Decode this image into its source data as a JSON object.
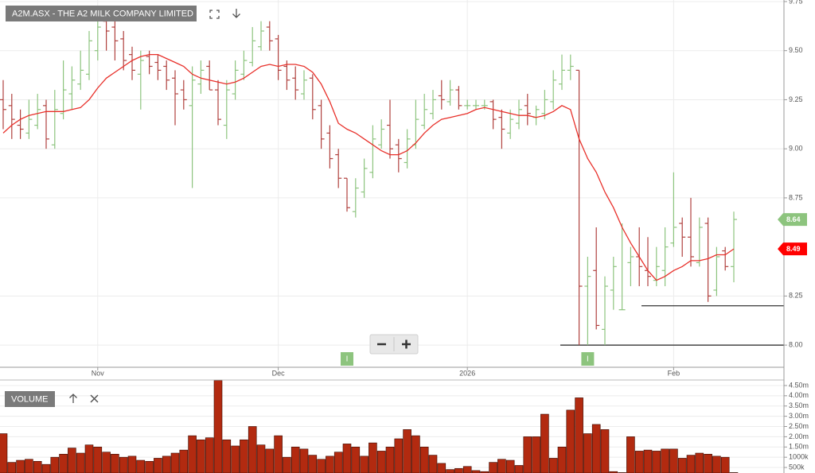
{
  "chart_data": [
    {
      "type": "ohlc",
      "title": "A2M.ASX - THE A2 MILK COMPANY LIMITED",
      "categories": [
        null,
        null,
        null,
        null,
        null,
        null,
        null,
        null,
        null,
        null,
        null,
        "Nov",
        null,
        null,
        null,
        null,
        null,
        null,
        null,
        null,
        null,
        null,
        null,
        null,
        null,
        null,
        null,
        null,
        null,
        null,
        null,
        null,
        "Dec",
        null,
        null,
        null,
        null,
        null,
        null,
        null,
        null,
        null,
        null,
        null,
        null,
        null,
        null,
        null,
        null,
        null,
        null,
        null,
        null,
        null,
        "2026",
        null,
        null,
        null,
        null,
        null,
        null,
        null,
        null,
        null,
        null,
        null,
        null,
        null,
        null,
        null,
        null,
        null,
        null,
        null,
        null,
        null,
        null,
        null,
        "Feb",
        null,
        null,
        null,
        null,
        null,
        null,
        null
      ],
      "open": [
        9.25,
        9.22,
        9.12,
        9.08,
        9.12,
        9.22,
        9.02,
        9.18,
        9.28,
        9.33,
        9.38,
        9.5,
        9.65,
        9.62,
        9.56,
        9.48,
        9.38,
        9.47,
        9.44,
        9.42,
        9.36,
        9.3,
        9.22,
        9.33,
        9.42,
        9.3,
        9.12,
        9.28,
        9.38,
        9.44,
        9.52,
        9.62,
        9.56,
        9.42,
        9.36,
        9.28,
        9.36,
        9.22,
        9.08,
        8.97,
        8.85,
        8.68,
        8.78,
        8.88,
        9.02,
        9.12,
        9.02,
        8.93,
        9.02,
        9.12,
        9.18,
        9.27,
        9.24,
        9.3,
        9.22,
        9.22,
        9.22,
        9.24,
        9.16,
        9.08,
        9.13,
        9.22,
        9.16,
        9.18,
        9.24,
        9.33,
        9.4,
        9.4,
        8.3,
        8.38,
        8.08,
        8.28,
        8.18,
        8.42,
        8.45,
        8.38,
        8.33,
        8.38,
        8.52,
        8.62,
        8.55,
        8.42,
        8.62,
        8.28,
        8.48,
        8.4
      ],
      "high": [
        9.35,
        9.28,
        9.2,
        9.25,
        9.28,
        9.25,
        9.3,
        9.45,
        9.42,
        9.5,
        9.6,
        9.72,
        9.7,
        9.65,
        9.6,
        9.52,
        9.5,
        9.5,
        9.48,
        9.45,
        9.4,
        9.35,
        9.42,
        9.45,
        9.45,
        9.35,
        9.35,
        9.45,
        9.5,
        9.62,
        9.65,
        9.65,
        9.58,
        9.45,
        9.42,
        9.4,
        9.38,
        9.25,
        9.12,
        9.0,
        8.85,
        8.85,
        8.95,
        9.12,
        9.15,
        9.25,
        9.05,
        9.1,
        9.25,
        9.28,
        9.3,
        9.35,
        9.35,
        9.32,
        9.25,
        9.25,
        9.25,
        9.25,
        9.2,
        9.2,
        9.25,
        9.28,
        9.22,
        9.3,
        9.4,
        9.48,
        9.48,
        9.4,
        8.45,
        8.6,
        8.35,
        8.45,
        8.62,
        8.5,
        8.6,
        8.55,
        8.5,
        8.6,
        8.88,
        8.65,
        8.75,
        8.65,
        8.65,
        8.5,
        8.5,
        8.68
      ],
      "low": [
        9.1,
        9.05,
        9.05,
        9.05,
        9.1,
        9.0,
        9.0,
        9.15,
        9.2,
        9.3,
        9.35,
        9.45,
        9.5,
        9.45,
        9.4,
        9.35,
        9.2,
        9.38,
        9.35,
        9.3,
        9.12,
        9.2,
        8.8,
        9.28,
        9.3,
        9.12,
        9.05,
        9.25,
        9.35,
        9.42,
        9.5,
        9.5,
        9.35,
        9.3,
        9.25,
        9.25,
        9.15,
        9.0,
        8.9,
        8.8,
        8.68,
        8.65,
        8.75,
        8.85,
        9.0,
        8.95,
        8.88,
        8.9,
        9.0,
        9.1,
        9.15,
        9.2,
        9.22,
        9.2,
        9.2,
        9.2,
        9.2,
        9.1,
        9.0,
        9.05,
        9.1,
        9.12,
        9.12,
        9.15,
        9.2,
        9.3,
        9.35,
        8.0,
        8.0,
        8.08,
        8.0,
        8.18,
        8.18,
        8.3,
        8.3,
        8.3,
        8.3,
        8.3,
        8.5,
        8.45,
        8.4,
        8.4,
        8.22,
        8.25,
        8.38,
        8.32
      ],
      "close": [
        9.2,
        9.15,
        9.1,
        9.15,
        9.2,
        9.05,
        9.2,
        9.3,
        9.35,
        9.4,
        9.55,
        9.62,
        9.6,
        9.55,
        9.45,
        9.4,
        9.45,
        9.42,
        9.4,
        9.35,
        9.28,
        9.25,
        9.35,
        9.4,
        9.3,
        9.15,
        9.3,
        9.4,
        9.45,
        9.55,
        9.6,
        9.55,
        9.4,
        9.35,
        9.3,
        9.35,
        9.2,
        9.05,
        8.95,
        8.85,
        8.7,
        8.8,
        8.9,
        9.05,
        9.1,
        9.0,
        8.95,
        9.05,
        9.15,
        9.2,
        9.25,
        9.25,
        9.3,
        9.22,
        9.22,
        9.22,
        9.22,
        9.15,
        9.1,
        9.15,
        9.2,
        9.18,
        9.2,
        9.25,
        9.35,
        9.4,
        9.42,
        8.3,
        8.35,
        8.1,
        8.3,
        8.4,
        8.18,
        8.45,
        8.4,
        8.35,
        8.4,
        8.5,
        8.6,
        8.55,
        8.45,
        8.6,
        8.25,
        8.45,
        8.4,
        8.64
      ],
      "up_color": "#8dc47e",
      "down_color": "#b0413e",
      "line": {
        "color": "#e8302a",
        "values": [
          9.08,
          9.12,
          9.15,
          9.17,
          9.18,
          9.19,
          9.19,
          9.19,
          9.2,
          9.21,
          9.25,
          9.31,
          9.36,
          9.39,
          9.42,
          9.45,
          9.47,
          9.48,
          9.48,
          9.46,
          9.44,
          9.42,
          9.38,
          9.36,
          9.35,
          9.34,
          9.33,
          9.34,
          9.36,
          9.39,
          9.42,
          9.43,
          9.42,
          9.43,
          9.43,
          9.42,
          9.39,
          9.33,
          9.24,
          9.13,
          9.1,
          9.08,
          9.05,
          9.02,
          8.99,
          8.97,
          8.97,
          8.99,
          9.03,
          9.08,
          9.12,
          9.15,
          9.16,
          9.17,
          9.18,
          9.2,
          9.21,
          9.2,
          9.19,
          9.18,
          9.17,
          9.17,
          9.16,
          9.17,
          9.19,
          9.22,
          9.2,
          9.05,
          8.95,
          8.88,
          8.78,
          8.7,
          8.6,
          8.52,
          8.45,
          8.38,
          8.33,
          8.35,
          8.38,
          8.4,
          8.43,
          8.43,
          8.44,
          8.46,
          8.46,
          8.49
        ]
      },
      "ylim": [
        7.887,
        9.758
      ],
      "yticks": [
        9.75,
        {
          "value": 9.5,
          "label": "9.50"
        },
        9.25,
        {
          "value": 9.0,
          "label": "9.00"
        },
        8.75,
        8.25,
        {
          "value": 8.0,
          "label": "8.00"
        }
      ],
      "grid": true,
      "markers": [
        {
          "value": 8.64,
          "color": "#8dc47e"
        },
        {
          "value": 8.49,
          "color": "#ff0000"
        }
      ],
      "hlines": [
        {
          "value": 8.2
        },
        {
          "value": 8.0
        }
      ],
      "events": [
        {
          "index": 40,
          "label": "I"
        },
        {
          "index": 68,
          "label": "I"
        }
      ]
    },
    {
      "type": "bar",
      "title": "VOLUME",
      "color": "#b22a10",
      "values": [
        2150000,
        750000,
        850000,
        900000,
        800000,
        650000,
        1000000,
        1150000,
        1450000,
        1200000,
        1600000,
        1500000,
        1250000,
        1150000,
        1000000,
        1050000,
        850000,
        800000,
        950000,
        1050000,
        1200000,
        1350000,
        2050000,
        1850000,
        1950000,
        4750000,
        1850000,
        1550000,
        1850000,
        2500000,
        1600000,
        1400000,
        2050000,
        1000000,
        1500000,
        1400000,
        1100000,
        900000,
        1050000,
        1250000,
        1650000,
        1500000,
        1050000,
        1700000,
        1300000,
        1500000,
        1900000,
        2350000,
        2050000,
        1500000,
        1100000,
        700000,
        400000,
        450000,
        550000,
        350000,
        300000,
        750000,
        900000,
        850000,
        600000,
        2000000,
        2000000,
        3100000,
        950000,
        1500000,
        3300000,
        3900000,
        2150000,
        2600000,
        2350000,
        300000,
        250000,
        2000000,
        1300000,
        1350000,
        1300000,
        1400000,
        1400000,
        950000,
        1100000,
        1200000,
        1150000,
        1050000,
        1000000,
        250000
      ],
      "ylim": [
        230000,
        4770000
      ],
      "yticks": [
        {
          "value": 4500000,
          "label": "4.50m"
        },
        {
          "value": 4000000,
          "label": "4.00m"
        },
        {
          "value": 3500000,
          "label": "3.50m"
        },
        {
          "value": 3000000,
          "label": "3.00m"
        },
        {
          "value": 2500000,
          "label": "2.50m"
        },
        {
          "value": 2000000,
          "label": "2.00m"
        },
        {
          "value": 1500000,
          "label": "1.50m"
        },
        {
          "value": 1000000,
          "label": "1000k"
        },
        {
          "value": 500000,
          "label": "500k"
        }
      ],
      "grid": true
    }
  ]
}
